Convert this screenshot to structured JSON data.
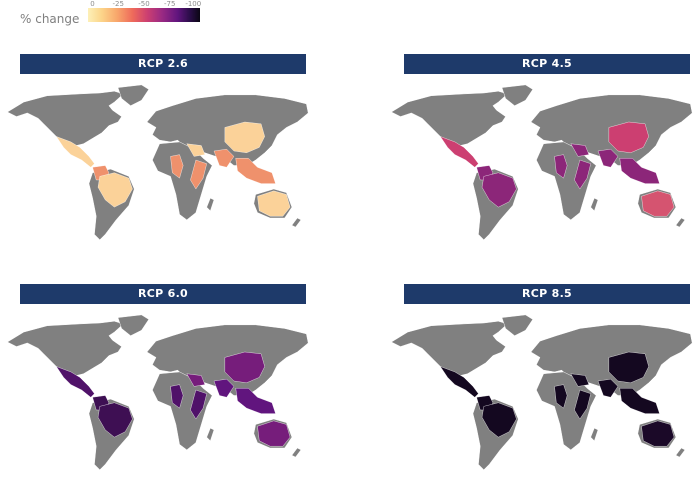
{
  "legend": {
    "title": "% change",
    "ticks": [
      "0",
      "-25",
      "-50",
      "-75",
      "-100"
    ],
    "tick_values": [
      0,
      -25,
      -50,
      -75,
      -100
    ]
  },
  "colors": {
    "land": "#808080",
    "banner": "#1e3a6a",
    "banner_text": "#ffffff",
    "scale": [
      "#fdf0b8",
      "#f8a66b",
      "#cc3f71",
      "#61157e",
      "#0a0613"
    ]
  },
  "panels": [
    {
      "title": "RCP 2.6",
      "regions": [
        {
          "name": "Central America",
          "change": -10
        },
        {
          "name": "Northern South America",
          "change": -30
        },
        {
          "name": "Brazil",
          "change": -10
        },
        {
          "name": "West Africa",
          "change": -30
        },
        {
          "name": "East Africa",
          "change": -30
        },
        {
          "name": "Middle East",
          "change": -10
        },
        {
          "name": "South Asia",
          "change": -30
        },
        {
          "name": "Southeast Asia",
          "change": -30
        },
        {
          "name": "China",
          "change": -10
        },
        {
          "name": "Australia",
          "change": -10
        }
      ]
    },
    {
      "title": "RCP 4.5",
      "regions": [
        {
          "name": "Central America",
          "change": -50
        },
        {
          "name": "Northern South America",
          "change": -65
        },
        {
          "name": "Brazil",
          "change": -65
        },
        {
          "name": "West Africa",
          "change": -65
        },
        {
          "name": "East Africa",
          "change": -65
        },
        {
          "name": "Middle East",
          "change": -65
        },
        {
          "name": "South Asia",
          "change": -65
        },
        {
          "name": "Southeast Asia",
          "change": -65
        },
        {
          "name": "China",
          "change": -50
        },
        {
          "name": "Australia",
          "change": -45
        }
      ]
    },
    {
      "title": "RCP 6.0",
      "regions": [
        {
          "name": "Central America",
          "change": -80
        },
        {
          "name": "Northern South America",
          "change": -85
        },
        {
          "name": "Brazil",
          "change": -85
        },
        {
          "name": "West Africa",
          "change": -80
        },
        {
          "name": "East Africa",
          "change": -80
        },
        {
          "name": "Middle East",
          "change": -70
        },
        {
          "name": "South Asia",
          "change": -75
        },
        {
          "name": "Southeast Asia",
          "change": -75
        },
        {
          "name": "China",
          "change": -70
        },
        {
          "name": "Australia",
          "change": -70
        }
      ]
    },
    {
      "title": "RCP 8.5",
      "regions": [
        {
          "name": "Central America",
          "change": -97
        },
        {
          "name": "Northern South America",
          "change": -97
        },
        {
          "name": "Brazil",
          "change": -97
        },
        {
          "name": "West Africa",
          "change": -97
        },
        {
          "name": "East Africa",
          "change": -97
        },
        {
          "name": "Middle East",
          "change": -97
        },
        {
          "name": "South Asia",
          "change": -97
        },
        {
          "name": "Southeast Asia",
          "change": -97
        },
        {
          "name": "China",
          "change": -97
        },
        {
          "name": "Australia",
          "change": -95
        }
      ]
    }
  ]
}
